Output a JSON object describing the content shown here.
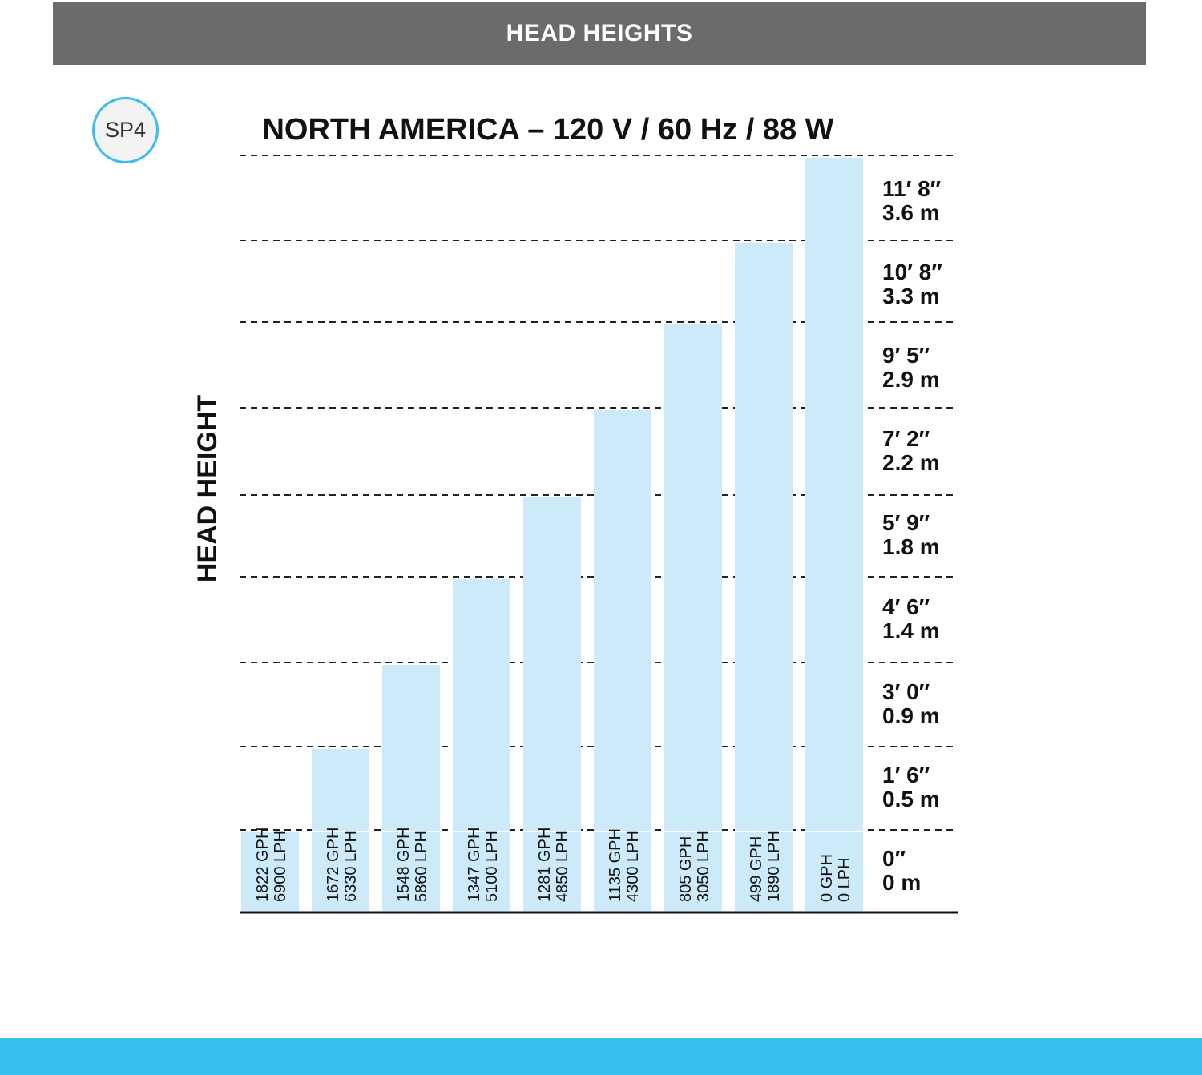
{
  "header": {
    "title": "HEAD HEIGHTS"
  },
  "badge": {
    "model": "SP4"
  },
  "colors": {
    "header_bg": "#6b6b6b",
    "bar_fill": "#cdeafa",
    "accent": "#38bdef",
    "text": "#111111",
    "gridline": "#222222"
  },
  "chart_data": {
    "type": "bar",
    "title": "NORTH AMERICA – 120 V / 60 Hz / 88 W",
    "ylabel": "HEAD HEIGHT",
    "xlabel": "",
    "categories": [
      [
        "1822 GPH",
        "6900 LPH"
      ],
      [
        "1672 GPH",
        "6330 LPH"
      ],
      [
        "1548 GPH",
        "5860 LPH"
      ],
      [
        "1347 GPH",
        "5100 LPH"
      ],
      [
        "1281 GPH",
        "4850 LPH"
      ],
      [
        "1135 GPH",
        "4300 LPH"
      ],
      [
        "805 GPH",
        "3050 LPH"
      ],
      [
        "499 GPH",
        "1890 LPH"
      ],
      [
        "0 GPH",
        "0 LPH"
      ]
    ],
    "values": [
      0,
      1,
      2,
      3,
      4,
      5,
      6,
      7,
      8
    ],
    "y_ticks": [
      [
        "0″",
        "0 m"
      ],
      [
        "1′ 6″",
        "0.5 m"
      ],
      [
        "3′ 0″",
        "0.9 m"
      ],
      [
        "4′ 6″",
        "1.4 m"
      ],
      [
        "5′ 9″",
        "1.8 m"
      ],
      [
        "7′ 2″",
        "2.2 m"
      ],
      [
        "9′ 5″",
        "2.9 m"
      ],
      [
        "10′ 8″",
        "3.3 m"
      ],
      [
        "11′ 8″",
        "3.6 m"
      ]
    ],
    "ylim": [
      0,
      9
    ],
    "grid": true,
    "gridline_style": "dashed",
    "ytick_position": "right"
  }
}
